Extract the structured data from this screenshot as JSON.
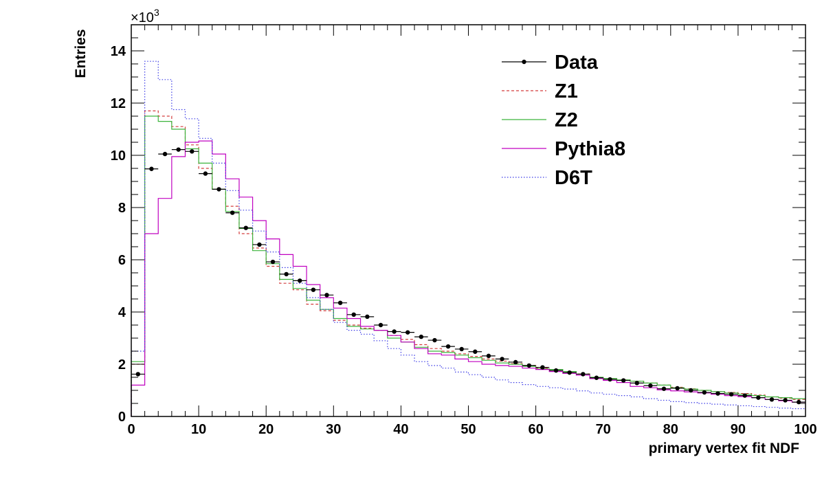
{
  "chart_data": {
    "type": "line",
    "xlabel": "primary vertex fit NDF",
    "ylabel": "Entries",
    "y_multiplier_label": "×10",
    "y_multiplier_exponent": "3",
    "xlim": [
      0,
      100
    ],
    "ylim": [
      0,
      15
    ],
    "x_ticks": [
      "0",
      "10",
      "20",
      "30",
      "40",
      "50",
      "60",
      "70",
      "80",
      "90",
      "100"
    ],
    "y_ticks": [
      "0",
      "2",
      "4",
      "6",
      "8",
      "10",
      "12",
      "14"
    ],
    "bin_width": 2,
    "bin_starts": [
      0,
      2,
      4,
      6,
      8,
      10,
      12,
      14,
      16,
      18,
      20,
      22,
      24,
      26,
      28,
      30,
      32,
      34,
      36,
      38,
      40,
      42,
      44,
      46,
      48,
      50,
      52,
      54,
      56,
      58,
      60,
      62,
      64,
      66,
      68,
      70,
      72,
      74,
      76,
      78,
      80,
      82,
      84,
      86,
      88,
      90,
      92,
      94,
      96,
      98
    ],
    "series": [
      {
        "name": "Data",
        "style": "points",
        "color": "#000000",
        "values": [
          1.62,
          9.48,
          10.05,
          10.22,
          10.15,
          9.3,
          8.7,
          7.8,
          7.22,
          6.58,
          5.92,
          5.45,
          5.2,
          4.85,
          4.65,
          4.35,
          3.9,
          3.82,
          3.5,
          3.25,
          3.22,
          3.05,
          2.92,
          2.68,
          2.58,
          2.48,
          2.32,
          2.2,
          2.08,
          1.95,
          1.88,
          1.76,
          1.68,
          1.62,
          1.48,
          1.42,
          1.38,
          1.28,
          1.18,
          1.06,
          1.08,
          1.0,
          0.92,
          0.88,
          0.85,
          0.8,
          0.72,
          0.65,
          0.62,
          0.55
        ]
      },
      {
        "name": "Z1",
        "style": "dashed",
        "color": "#d43c3c",
        "values": [
          2.0,
          11.7,
          11.5,
          11.1,
          10.4,
          9.5,
          8.7,
          8.05,
          7.0,
          6.45,
          5.75,
          5.1,
          4.85,
          4.3,
          4.05,
          3.68,
          3.5,
          3.38,
          3.3,
          3.1,
          2.95,
          2.75,
          2.6,
          2.5,
          2.4,
          2.3,
          2.2,
          2.12,
          2.02,
          1.95,
          1.85,
          1.8,
          1.72,
          1.63,
          1.5,
          1.45,
          1.4,
          1.35,
          1.28,
          1.2,
          1.12,
          1.06,
          1.0,
          0.95,
          0.92,
          0.88,
          0.82,
          0.75,
          0.7,
          0.65
        ]
      },
      {
        "name": "Z2",
        "style": "solid",
        "color": "#3cb43c",
        "values": [
          2.1,
          11.5,
          11.3,
          11.0,
          10.25,
          9.7,
          8.7,
          7.85,
          7.2,
          6.35,
          5.85,
          5.25,
          4.9,
          4.45,
          4.1,
          3.75,
          3.45,
          3.35,
          3.3,
          3.0,
          2.85,
          2.65,
          2.5,
          2.45,
          2.35,
          2.25,
          2.15,
          2.05,
          2.0,
          1.92,
          1.82,
          1.8,
          1.72,
          1.62,
          1.5,
          1.45,
          1.4,
          1.35,
          1.28,
          1.2,
          1.1,
          1.05,
          1.0,
          0.95,
          0.9,
          0.85,
          0.8,
          0.75,
          0.72,
          0.68
        ]
      },
      {
        "name": "Pythia8",
        "style": "solid",
        "color": "#c000c0",
        "values": [
          1.2,
          7.0,
          8.35,
          9.95,
          10.5,
          10.55,
          10.05,
          9.1,
          8.4,
          7.5,
          6.8,
          6.2,
          5.75,
          5.05,
          4.55,
          4.15,
          3.75,
          3.45,
          3.3,
          3.1,
          2.85,
          2.6,
          2.4,
          2.35,
          2.2,
          2.1,
          2.0,
          1.95,
          1.92,
          1.85,
          1.8,
          1.72,
          1.65,
          1.58,
          1.45,
          1.38,
          1.3,
          1.15,
          1.1,
          1.02,
          0.98,
          0.94,
          0.9,
          0.85,
          0.8,
          0.76,
          0.72,
          0.65,
          0.6,
          0.55
        ]
      },
      {
        "name": "D6T",
        "style": "dotted",
        "color": "#3a3ae6",
        "values": [
          2.5,
          13.6,
          12.9,
          11.75,
          11.4,
          10.65,
          9.7,
          8.65,
          7.9,
          7.1,
          6.3,
          5.7,
          5.1,
          4.55,
          4.1,
          3.6,
          3.3,
          3.15,
          2.9,
          2.6,
          2.35,
          2.1,
          1.95,
          1.85,
          1.7,
          1.6,
          1.5,
          1.4,
          1.3,
          1.22,
          1.15,
          1.1,
          1.05,
          0.98,
          0.9,
          0.85,
          0.8,
          0.75,
          0.68,
          0.62,
          0.57,
          0.53,
          0.5,
          0.47,
          0.44,
          0.41,
          0.38,
          0.35,
          0.32,
          0.3
        ]
      }
    ],
    "legend_position": "top-right",
    "grid": false
  }
}
